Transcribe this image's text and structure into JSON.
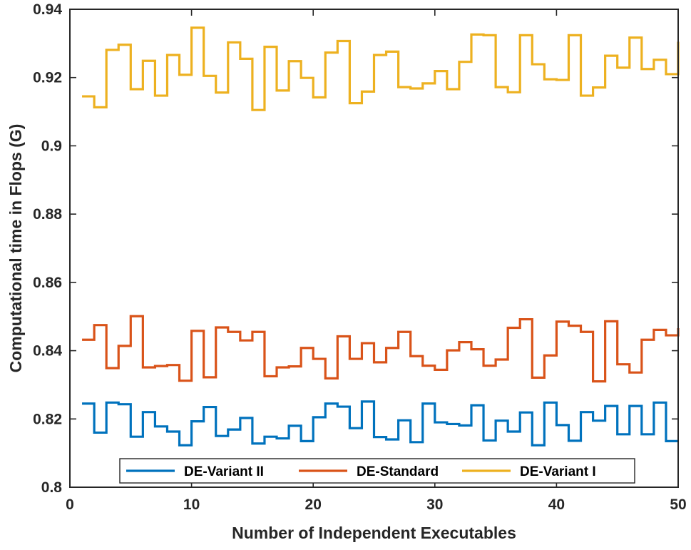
{
  "chart_data": {
    "type": "line",
    "style": "stairs",
    "xlabel": "Number of Independent Executables",
    "ylabel": "Computational time in Flops (G)",
    "xlim": [
      0,
      50
    ],
    "ylim": [
      0.8,
      0.94
    ],
    "xticks": [
      0,
      10,
      20,
      30,
      40,
      50
    ],
    "xtick_labels": [
      "0",
      "10",
      "20",
      "30",
      "40",
      "50"
    ],
    "yticks": [
      0.8,
      0.82,
      0.84,
      0.86,
      0.88,
      0.9,
      0.92,
      0.94
    ],
    "ytick_labels": [
      "0.8",
      "0.82",
      "0.84",
      "0.86",
      "0.88",
      "0.9",
      "0.92",
      "0.94"
    ],
    "grid": false,
    "legend_position": "bottom",
    "x": [
      1,
      2,
      3,
      4,
      5,
      6,
      7,
      8,
      9,
      10,
      11,
      12,
      13,
      14,
      15,
      16,
      17,
      18,
      19,
      20,
      21,
      22,
      23,
      24,
      25,
      26,
      27,
      28,
      29,
      30,
      31,
      32,
      33,
      34,
      35,
      36,
      37,
      38,
      39,
      40,
      41,
      42,
      43,
      44,
      45,
      46,
      47,
      48,
      49,
      50
    ],
    "series": [
      {
        "name": "DE-Variant II",
        "color": "#0072BD",
        "values": [
          0.8245,
          0.816,
          0.8248,
          0.8243,
          0.8148,
          0.822,
          0.8178,
          0.8163,
          0.8123,
          0.8193,
          0.8235,
          0.815,
          0.8169,
          0.8203,
          0.8128,
          0.8148,
          0.8143,
          0.818,
          0.8135,
          0.8205,
          0.8245,
          0.8236,
          0.8173,
          0.8251,
          0.8147,
          0.814,
          0.8196,
          0.8132,
          0.8245,
          0.819,
          0.8185,
          0.8181,
          0.824,
          0.8137,
          0.8195,
          0.8163,
          0.8219,
          0.8123,
          0.8248,
          0.8182,
          0.8136,
          0.822,
          0.8195,
          0.8238,
          0.8155,
          0.8238,
          0.8155,
          0.8248,
          0.8135,
          0.8135
        ]
      },
      {
        "name": "DE-Standard",
        "color": "#D95319",
        "values": [
          0.8432,
          0.8475,
          0.8349,
          0.8414,
          0.8501,
          0.8351,
          0.8355,
          0.8358,
          0.8312,
          0.8458,
          0.8322,
          0.8468,
          0.8455,
          0.843,
          0.8455,
          0.8325,
          0.8351,
          0.8354,
          0.8408,
          0.8376,
          0.8319,
          0.8442,
          0.8376,
          0.8422,
          0.8366,
          0.8408,
          0.8455,
          0.8384,
          0.8356,
          0.8344,
          0.8401,
          0.8425,
          0.8404,
          0.8356,
          0.8374,
          0.8467,
          0.8492,
          0.8321,
          0.8386,
          0.8485,
          0.8473,
          0.8455,
          0.831,
          0.8486,
          0.836,
          0.8336,
          0.8432,
          0.8461,
          0.8445,
          0.8466
        ]
      },
      {
        "name": "DE-Variant I",
        "color": "#EDB120",
        "values": [
          0.9145,
          0.9113,
          0.9281,
          0.9296,
          0.9166,
          0.9249,
          0.9147,
          0.9266,
          0.9208,
          0.9346,
          0.9205,
          0.9156,
          0.9303,
          0.9255,
          0.9105,
          0.929,
          0.9162,
          0.9248,
          0.9199,
          0.9142,
          0.9273,
          0.9307,
          0.9125,
          0.9159,
          0.9266,
          0.9276,
          0.9172,
          0.9168,
          0.9183,
          0.9219,
          0.9166,
          0.9246,
          0.9326,
          0.9324,
          0.9172,
          0.9157,
          0.9324,
          0.9239,
          0.9195,
          0.9193,
          0.9324,
          0.9147,
          0.9171,
          0.9264,
          0.9229,
          0.9317,
          0.9225,
          0.9252,
          0.921,
          0.9305
        ]
      }
    ]
  }
}
